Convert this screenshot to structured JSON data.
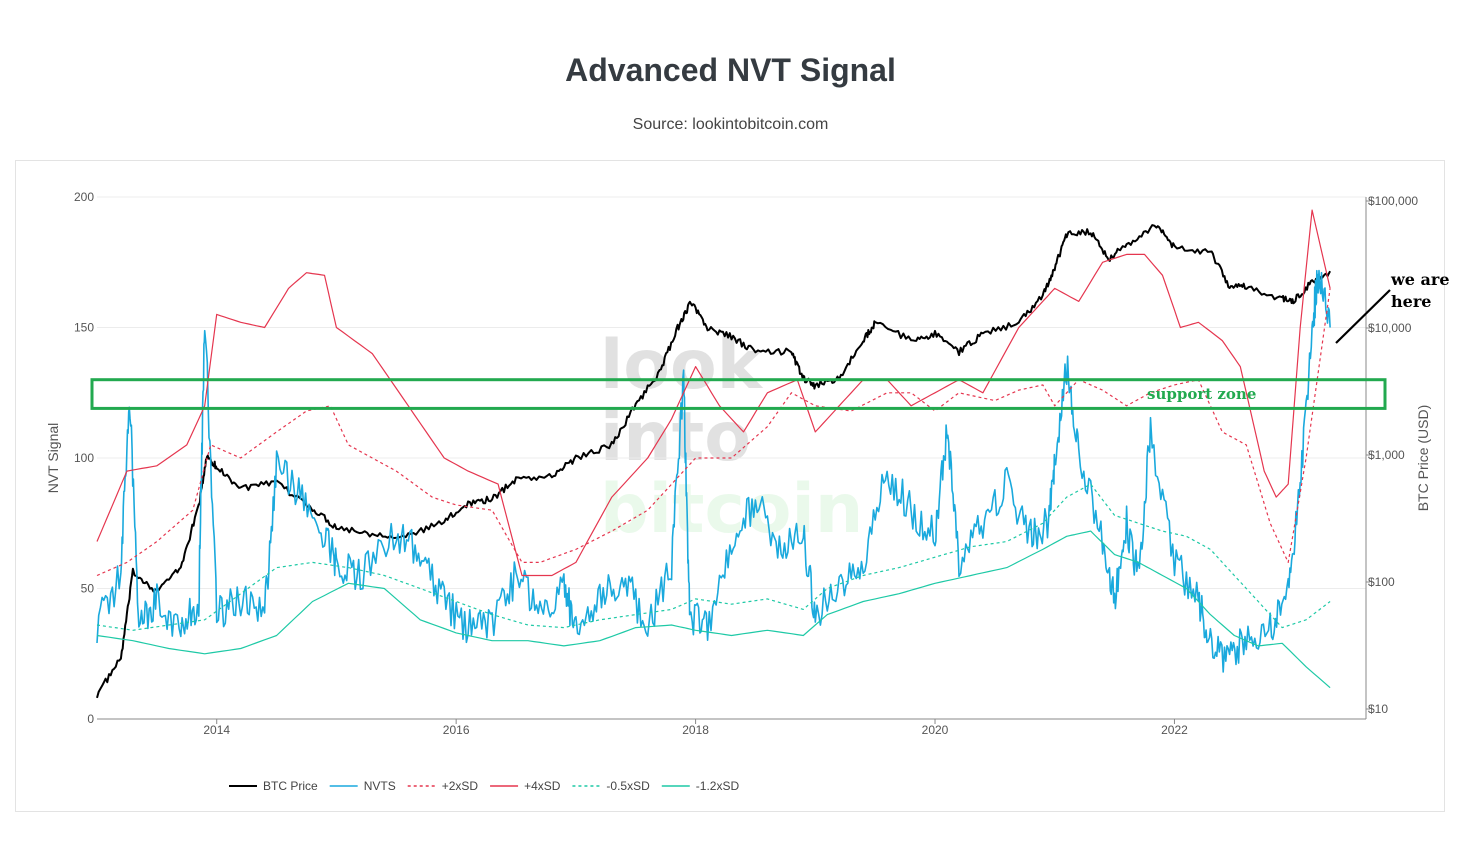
{
  "page": {
    "title": "Advanced NVT Signal",
    "subtitle": "Source: lookintobitcoin.com"
  },
  "watermark": [
    "look",
    "into",
    "bitcoin"
  ],
  "annotations": {
    "we_are_line1": "we are",
    "we_are_line2": "here",
    "support_zone": "support zone",
    "support_zone_color": "#22a94f"
  },
  "chart_data": {
    "type": "line",
    "title": "Advanced NVT Signal",
    "subtitle": "Source: lookintobitcoin.com",
    "x_ticks": [
      "2014",
      "2016",
      "2018",
      "2020",
      "2022"
    ],
    "y_left": {
      "label": "NVT Signal",
      "ticks": [
        "0",
        "50",
        "100",
        "150",
        "200"
      ],
      "range": [
        0,
        200
      ]
    },
    "y_right": {
      "label": "BTC Price (USD)",
      "scale": "log",
      "ticks": [
        "$10",
        "$100",
        "$1,000",
        "$10,000",
        "$100,000"
      ],
      "range": [
        10,
        100000
      ]
    },
    "x_range": [
      2013.0,
      2023.6
    ],
    "legend_position": "bottom-left",
    "support_zone_nvt": [
      119,
      130
    ],
    "series": [
      {
        "name": "BTC Price",
        "axis": "right",
        "color": "#000000",
        "dash": "solid",
        "x": [
          2013.0,
          2013.2,
          2013.3,
          2013.5,
          2013.7,
          2013.85,
          2013.92,
          2014.0,
          2014.2,
          2014.5,
          2014.8,
          2015.0,
          2015.3,
          2015.6,
          2015.9,
          2016.1,
          2016.3,
          2016.5,
          2016.8,
          2017.0,
          2017.3,
          2017.5,
          2017.7,
          2017.85,
          2017.96,
          2018.1,
          2018.3,
          2018.5,
          2018.8,
          2018.9,
          2019.0,
          2019.2,
          2019.4,
          2019.5,
          2019.8,
          2020.0,
          2020.2,
          2020.4,
          2020.7,
          2020.9,
          2021.0,
          2021.1,
          2021.3,
          2021.45,
          2021.6,
          2021.85,
          2022.0,
          2022.3,
          2022.45,
          2022.6,
          2022.9,
          2023.0,
          2023.15,
          2023.3
        ],
        "y": [
          13,
          25,
          120,
          85,
          130,
          400,
          1000,
          800,
          550,
          600,
          380,
          270,
          240,
          230,
          300,
          420,
          450,
          650,
          680,
          950,
          1200,
          2500,
          4500,
          10000,
          16000,
          10000,
          8500,
          6500,
          6500,
          4000,
          3500,
          4000,
          8000,
          11000,
          8000,
          9000,
          6500,
          9000,
          11000,
          18000,
          30000,
          55000,
          58000,
          35000,
          45000,
          65000,
          43000,
          40000,
          22000,
          21000,
          17000,
          16500,
          23000,
          28000
        ]
      },
      {
        "name": "NVTS",
        "axis": "left",
        "color": "#1aa9dd",
        "dash": "solid",
        "x": [
          2013.0,
          2013.2,
          2013.27,
          2013.35,
          2013.5,
          2013.7,
          2013.85,
          2013.9,
          2014.0,
          2014.2,
          2014.4,
          2014.5,
          2014.7,
          2014.9,
          2015.0,
          2015.2,
          2015.5,
          2015.7,
          2015.9,
          2016.1,
          2016.3,
          2016.5,
          2016.7,
          2016.9,
          2017.0,
          2017.2,
          2017.4,
          2017.6,
          2017.8,
          2017.9,
          2017.95,
          2018.1,
          2018.3,
          2018.5,
          2018.7,
          2018.9,
          2019.0,
          2019.2,
          2019.4,
          2019.6,
          2019.8,
          2020.0,
          2020.1,
          2020.2,
          2020.4,
          2020.6,
          2020.8,
          2020.95,
          2021.0,
          2021.1,
          2021.2,
          2021.4,
          2021.5,
          2021.6,
          2021.7,
          2021.8,
          2022.0,
          2022.2,
          2022.3,
          2022.45,
          2022.6,
          2022.8,
          2022.95,
          2023.05,
          2023.15,
          2023.2,
          2023.3
        ],
        "y": [
          36,
          55,
          126,
          38,
          45,
          35,
          45,
          155,
          40,
          45,
          40,
          98,
          85,
          70,
          60,
          55,
          70,
          65,
          45,
          35,
          35,
          55,
          42,
          50,
          35,
          45,
          55,
          35,
          60,
          130,
          40,
          35,
          65,
          85,
          65,
          70,
          40,
          50,
          60,
          95,
          80,
          70,
          110,
          60,
          75,
          90,
          70,
          75,
          100,
          135,
          100,
          70,
          45,
          75,
          55,
          110,
          60,
          45,
          30,
          22,
          32,
          35,
          50,
          90,
          150,
          170,
          150
        ]
      },
      {
        "name": "+2xSD",
        "axis": "left",
        "color": "#e5364f",
        "dash": "dashed",
        "x": [
          2013.0,
          2013.25,
          2013.5,
          2013.8,
          2013.95,
          2014.2,
          2014.5,
          2014.75,
          2014.95,
          2015.1,
          2015.5,
          2015.8,
          2016.0,
          2016.3,
          2016.55,
          2016.7,
          2017.0,
          2017.3,
          2017.6,
          2017.8,
          2018.0,
          2018.3,
          2018.6,
          2018.8,
          2019.0,
          2019.3,
          2019.6,
          2019.8,
          2020.0,
          2020.2,
          2020.5,
          2020.7,
          2020.9,
          2021.0,
          2021.2,
          2021.4,
          2021.6,
          2021.8,
          2022.0,
          2022.2,
          2022.4,
          2022.6,
          2022.8,
          2022.95,
          2023.1,
          2023.3
        ],
        "y": [
          55,
          60,
          68,
          80,
          105,
          100,
          110,
          118,
          120,
          105,
          95,
          85,
          82,
          80,
          60,
          60,
          65,
          72,
          80,
          90,
          100,
          100,
          112,
          125,
          120,
          118,
          125,
          125,
          118,
          125,
          122,
          126,
          128,
          120,
          130,
          126,
          120,
          125,
          128,
          130,
          110,
          105,
          75,
          60,
          100,
          165
        ]
      },
      {
        "name": "+4xSD",
        "axis": "left",
        "color": "#e5364f",
        "dash": "solid",
        "x": [
          2013.0,
          2013.25,
          2013.5,
          2013.75,
          2013.9,
          2014.0,
          2014.2,
          2014.4,
          2014.6,
          2014.75,
          2014.9,
          2015.0,
          2015.3,
          2015.6,
          2015.9,
          2016.1,
          2016.35,
          2016.55,
          2016.8,
          2017.0,
          2017.3,
          2017.6,
          2017.8,
          2018.0,
          2018.2,
          2018.4,
          2018.6,
          2018.85,
          2019.0,
          2019.2,
          2019.4,
          2019.6,
          2019.8,
          2020.0,
          2020.2,
          2020.4,
          2020.7,
          2020.9,
          2021.0,
          2021.2,
          2021.4,
          2021.6,
          2021.75,
          2021.9,
          2022.05,
          2022.2,
          2022.4,
          2022.55,
          2022.75,
          2022.85,
          2022.95,
          2023.05,
          2023.15,
          2023.3
        ],
        "y": [
          68,
          95,
          97,
          105,
          120,
          155,
          152,
          150,
          165,
          171,
          170,
          150,
          140,
          120,
          100,
          95,
          90,
          55,
          55,
          60,
          85,
          100,
          115,
          135,
          120,
          110,
          125,
          130,
          110,
          120,
          130,
          130,
          120,
          125,
          130,
          125,
          150,
          160,
          165,
          160,
          175,
          178,
          178,
          170,
          150,
          152,
          145,
          135,
          95,
          85,
          90,
          150,
          195,
          165
        ]
      },
      {
        "name": "-0.5xSD",
        "axis": "left",
        "color": "#1ec9a6",
        "dash": "dashed",
        "x": [
          2013.0,
          2013.3,
          2013.6,
          2013.9,
          2014.2,
          2014.5,
          2014.8,
          2015.1,
          2015.4,
          2015.7,
          2016.0,
          2016.3,
          2016.6,
          2016.9,
          2017.2,
          2017.5,
          2017.8,
          2018.0,
          2018.3,
          2018.6,
          2018.9,
          2019.1,
          2019.4,
          2019.7,
          2020.0,
          2020.3,
          2020.6,
          2020.9,
          2021.1,
          2021.3,
          2021.5,
          2021.7,
          2021.9,
          2022.1,
          2022.3,
          2022.5,
          2022.7,
          2022.9,
          2023.1,
          2023.3
        ],
        "y": [
          36,
          34,
          36,
          38,
          48,
          58,
          60,
          58,
          55,
          50,
          45,
          40,
          36,
          35,
          38,
          40,
          42,
          46,
          44,
          46,
          42,
          50,
          55,
          58,
          62,
          66,
          68,
          75,
          85,
          90,
          78,
          75,
          72,
          70,
          65,
          55,
          45,
          35,
          38,
          45
        ]
      },
      {
        "name": "-1.2xSD",
        "axis": "left",
        "color": "#1ec9a6",
        "dash": "solid",
        "x": [
          2013.0,
          2013.3,
          2013.6,
          2013.9,
          2014.2,
          2014.5,
          2014.8,
          2015.1,
          2015.4,
          2015.7,
          2016.0,
          2016.3,
          2016.6,
          2016.9,
          2017.2,
          2017.5,
          2017.8,
          2018.0,
          2018.3,
          2018.6,
          2018.9,
          2019.1,
          2019.4,
          2019.7,
          2020.0,
          2020.3,
          2020.6,
          2020.9,
          2021.1,
          2021.3,
          2021.5,
          2021.7,
          2021.9,
          2022.1,
          2022.3,
          2022.5,
          2022.7,
          2022.9,
          2023.1,
          2023.3
        ],
        "y": [
          32,
          30,
          27,
          25,
          27,
          32,
          45,
          52,
          50,
          38,
          33,
          30,
          30,
          28,
          30,
          35,
          36,
          34,
          32,
          34,
          32,
          40,
          45,
          48,
          52,
          55,
          58,
          65,
          70,
          72,
          63,
          60,
          55,
          50,
          40,
          32,
          28,
          29,
          20,
          12
        ]
      }
    ]
  }
}
